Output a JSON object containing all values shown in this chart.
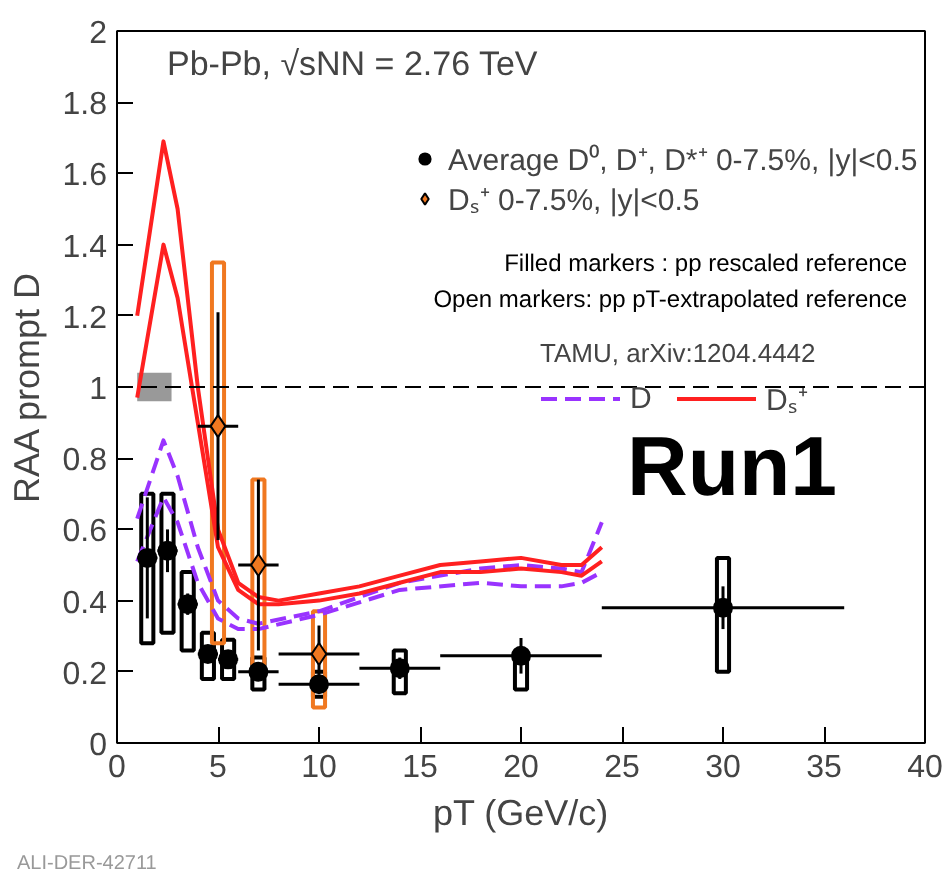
{
  "chart_data": {
    "type": "scatter",
    "title": "Pb-Pb, √sNN = 2.76 TeV",
    "xlabel": "pT (GeV/c)",
    "ylabel": "RAA prompt D",
    "xlim": [
      0,
      40
    ],
    "ylim": [
      0,
      2
    ],
    "xticks": [
      0,
      5,
      10,
      15,
      20,
      25,
      30,
      35,
      40
    ],
    "yticks": [
      0,
      0.2,
      0.4,
      0.6,
      0.8,
      1,
      1.2,
      1.4,
      1.6,
      1.8,
      2
    ],
    "grid": false,
    "legend": "top right",
    "legend_title": "TAMU, arXiv:1204.4442",
    "ref_lines": [
      {
        "axis": "y",
        "value": 1,
        "label": null,
        "color": "#000000",
        "line_style": "dashed"
      }
    ],
    "series": [
      {
        "type": "bar",
        "color": "#000000",
        "x": [
          1.5,
          2.5,
          3.5,
          4.5,
          5.5,
          7,
          10,
          14,
          20,
          30
        ],
        "base": [
          0.28,
          0.31,
          0.26,
          0.18,
          0.18,
          0.15,
          0.13,
          0.14,
          0.15,
          0.2
        ],
        "values": [
          0.42,
          0.39,
          0.22,
          0.13,
          0.11,
          0.09,
          0.07,
          0.12,
          0.11,
          0.32
        ]
      },
      {
        "type": "bar",
        "color": "#f07820",
        "x": [
          5,
          7,
          10
        ],
        "base": [
          0.28,
          0.22,
          0.1
        ],
        "values": [
          1.07,
          0.52,
          0.27
        ]
      },
      {
        "type": "bar",
        "color": "#999999",
        "x": [
          1.85
        ],
        "base": [
          0.96
        ],
        "values": [
          0.08
        ]
      },
      {
        "type": "line",
        "name": "D",
        "color": "#9933ff",
        "line_style": "dashed",
        "x": [
          1,
          2.3,
          3,
          4,
          5,
          6,
          7,
          10,
          14,
          18,
          20,
          22,
          23,
          24
        ],
        "values": [
          0.63,
          0.85,
          0.75,
          0.55,
          0.4,
          0.35,
          0.335,
          0.37,
          0.45,
          0.49,
          0.5,
          0.49,
          0.48,
          0.62
        ]
      },
      {
        "type": "line",
        "color": "#9933ff",
        "line_style": "dashed",
        "x": [
          1,
          2.3,
          3,
          4,
          5,
          6,
          7,
          10,
          14,
          18,
          20,
          22,
          23,
          24
        ],
        "values": [
          0.51,
          0.69,
          0.62,
          0.45,
          0.35,
          0.32,
          0.32,
          0.36,
          0.43,
          0.45,
          0.44,
          0.44,
          0.45,
          0.48
        ]
      },
      {
        "type": "line",
        "name": "Dₛ⁺",
        "color": "#ff2020",
        "line_style": "solid",
        "x": [
          1,
          2.3,
          3,
          4,
          5,
          6,
          7,
          8,
          10,
          12,
          14,
          16,
          18,
          20,
          22,
          23,
          24
        ],
        "values": [
          1.2,
          1.69,
          1.5,
          1.0,
          0.6,
          0.45,
          0.41,
          0.4,
          0.42,
          0.44,
          0.47,
          0.5,
          0.51,
          0.52,
          0.5,
          0.5,
          0.55
        ]
      },
      {
        "type": "line",
        "color": "#ff2020",
        "line_style": "solid",
        "x": [
          1,
          2.3,
          3,
          4,
          5,
          6,
          7,
          8,
          10,
          12,
          14,
          16,
          18,
          20,
          22,
          23,
          24
        ],
        "values": [
          0.97,
          1.4,
          1.25,
          0.9,
          0.55,
          0.43,
          0.39,
          0.39,
          0.4,
          0.42,
          0.45,
          0.48,
          0.48,
          0.49,
          0.48,
          0.47,
          0.51
        ]
      },
      {
        "name": "Average D⁰, D⁺, D*⁺ 0-7.5%, |y|<0.5",
        "color": "#000000",
        "marker": "circle",
        "x": [
          1.5,
          2.5,
          3.5,
          4.5,
          5.5,
          7,
          10,
          14,
          20,
          30
        ],
        "values": [
          0.52,
          0.54,
          0.39,
          0.25,
          0.235,
          0.2,
          0.165,
          0.21,
          0.245,
          0.38
        ],
        "errors": [
          0.17,
          0.06,
          0.03,
          0.02,
          0.02,
          0.02,
          0.02,
          0.03,
          0.05,
          0.06
        ],
        "xerrors": [
          0.5,
          0.5,
          0.5,
          0.5,
          0.5,
          1,
          2,
          2,
          4,
          6
        ]
      },
      {
        "name": "Dₛ⁺ 0-7.5%, |y|<0.5",
        "color": "#f07820",
        "marker": "diamond",
        "x": [
          5,
          7,
          10
        ],
        "values": [
          0.89,
          0.5,
          0.25
        ],
        "errors": [
          0.32,
          0.24,
          0.08
        ],
        "xerrors": [
          1,
          1,
          2
        ]
      }
    ],
    "annotations": [
      "Filled markers : pp rescaled reference",
      "Open markers: pp pT-extrapolated reference",
      "Run1",
      "ALI-DER-42711"
    ]
  }
}
